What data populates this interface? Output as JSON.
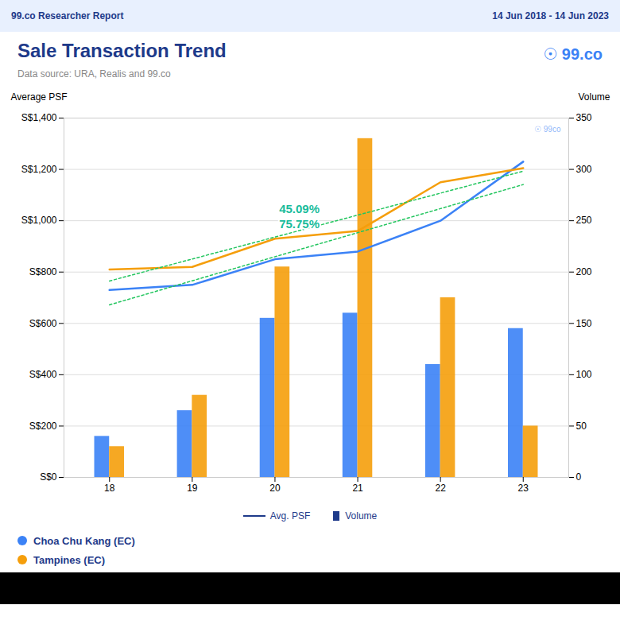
{
  "chart_data": {
    "type": "combo",
    "title": "Sale Transaction Trend",
    "subtitle": "Data source: URA, Realis and 99.co",
    "header_left": "99.co Researcher Report",
    "header_right": "14 Jun 2018 - 14 Jun 2023",
    "logo": "☉ 99.co",
    "watermark": "☉ 99co",
    "annotation": {
      "text": "45.09%\n75.75%",
      "x": 20.05,
      "y": 1020
    },
    "x": [
      18,
      19,
      20,
      21,
      22,
      23
    ],
    "xlim": [
      17.45,
      23.55
    ],
    "xticks": [
      18,
      19,
      20,
      21,
      22,
      23
    ],
    "ylabel": "Average PSF",
    "ylim": [
      0,
      1400
    ],
    "yticks": [
      {
        "value": 0,
        "label": "S$0"
      },
      {
        "value": 200,
        "label": "S$200"
      },
      {
        "value": 400,
        "label": "S$400"
      },
      {
        "value": 600,
        "label": "S$600"
      },
      {
        "value": 800,
        "label": "S$800"
      },
      {
        "value": 1000,
        "label": "S$1,000"
      },
      {
        "value": 1200,
        "label": "S$1,200"
      },
      {
        "value": 1400,
        "label": "S$1,400"
      }
    ],
    "y2label": "Volume",
    "y2lim": [
      0,
      350
    ],
    "y2ticks": [
      0,
      50,
      100,
      150,
      200,
      250,
      300,
      350
    ],
    "grid": true,
    "legend": "bottom",
    "legend_labels": {
      "line": "Avg. PSF",
      "bar": "Volume"
    },
    "series": [
      {
        "name": "Choa Chu Kang (EC)",
        "type": "line",
        "color": "#3b82f6",
        "values": [
          730,
          750,
          850,
          880,
          1000,
          1230
        ]
      },
      {
        "name": "Tampines (EC)",
        "type": "line",
        "color": "#f59e0b",
        "values": [
          810,
          820,
          930,
          960,
          1150,
          1205
        ]
      },
      {
        "type": "line",
        "line_style": "dotted",
        "color": "#22c55e",
        "values": [
          672.381,
          766.095,
          859.81,
          953.524,
          1047.238,
          1140.952
        ]
      },
      {
        "type": "line",
        "line_style": "dotted",
        "color": "#22c55e",
        "values": [
          765.238,
          850.81,
          936.381,
          1021.952,
          1107.524,
          1193.095
        ]
      },
      {
        "name": "Choa Chu Kang (EC)",
        "type": "bar",
        "axis": "y2",
        "color": "#3b82f6",
        "values": [
          40,
          65,
          155,
          160,
          110,
          145
        ]
      },
      {
        "name": "Tampines (EC)",
        "type": "bar",
        "axis": "y2",
        "color": "#f59e0b",
        "values": [
          30,
          80,
          205,
          330,
          175,
          50
        ]
      }
    ]
  }
}
